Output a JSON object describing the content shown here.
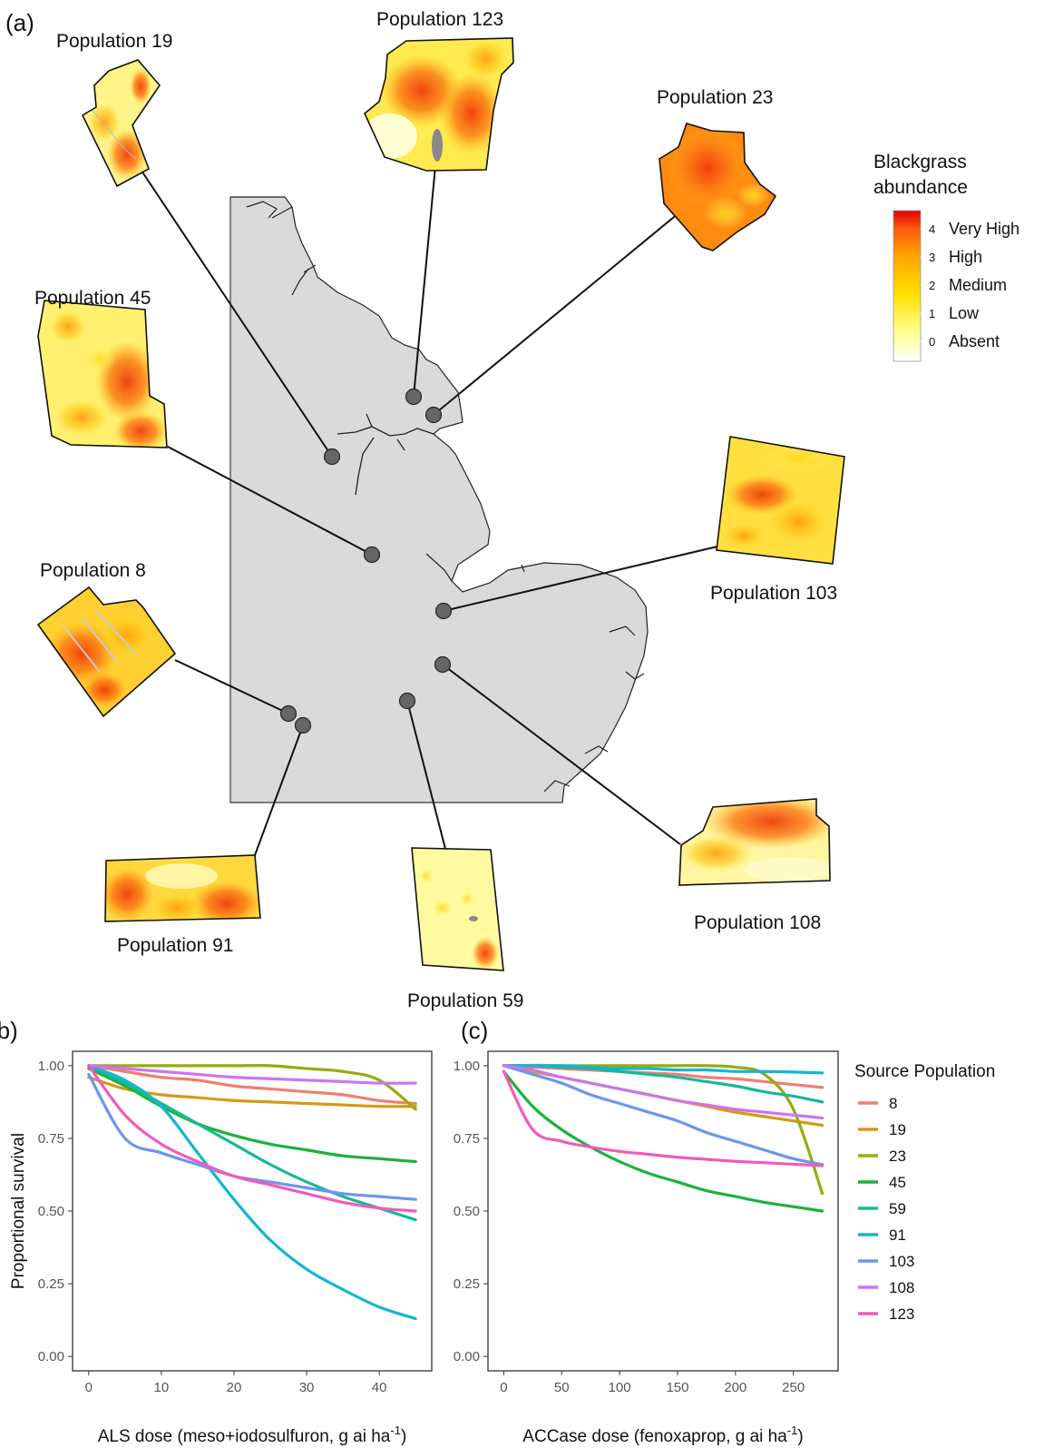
{
  "panel_a": {
    "panel_label": "(a)",
    "legend": {
      "title_line1": "Blackgrass",
      "title_line2": "abundance",
      "levels": [
        {
          "value": "4",
          "label": "Very High"
        },
        {
          "value": "3",
          "label": "High"
        },
        {
          "value": "2",
          "label": "Medium"
        },
        {
          "value": "1",
          "label": "Low"
        },
        {
          "value": "0",
          "label": "Absent"
        }
      ],
      "colors": [
        "#ffffff",
        "#ffff8c",
        "#ffe000",
        "#ffa400",
        "#ff5a10",
        "#e00000"
      ]
    },
    "populations": [
      {
        "label": "Population 19"
      },
      {
        "label": "Population 123"
      },
      {
        "label": "Population 23"
      },
      {
        "label": "Population 45"
      },
      {
        "label": "Population 103"
      },
      {
        "label": "Population 8"
      },
      {
        "label": "Population 91"
      },
      {
        "label": "Population 59"
      },
      {
        "label": "Population 108"
      }
    ]
  },
  "chart_data": [
    {
      "panel_label": "(b)",
      "type": "line",
      "xlabel": "ALS dose (meso+iodosulfuron, g ai ha",
      "xlabel_sup": "-1",
      "xlabel_end": ")",
      "ylabel": "Proportional survival",
      "xlim": [
        0,
        45
      ],
      "ylim": [
        0,
        1
      ],
      "xticks": [
        "0",
        "10",
        "20",
        "30",
        "40"
      ],
      "yticks": [
        "0.00",
        "0.25",
        "0.50",
        "0.75",
        "1.00"
      ],
      "x": [
        0,
        5,
        10,
        15,
        20,
        25,
        30,
        35,
        40,
        45
      ],
      "series": [
        {
          "name": "8",
          "values": [
            1.0,
            0.98,
            0.96,
            0.95,
            0.93,
            0.92,
            0.91,
            0.9,
            0.88,
            0.87
          ]
        },
        {
          "name": "19",
          "values": [
            0.96,
            0.92,
            0.9,
            0.89,
            0.88,
            0.875,
            0.87,
            0.865,
            0.86,
            0.86
          ]
        },
        {
          "name": "23",
          "values": [
            1.0,
            1.0,
            1.0,
            1.0,
            1.0,
            1.0,
            0.99,
            0.98,
            0.95,
            0.85
          ]
        },
        {
          "name": "45",
          "values": [
            0.99,
            0.93,
            0.86,
            0.8,
            0.76,
            0.73,
            0.71,
            0.69,
            0.68,
            0.67
          ]
        },
        {
          "name": "59",
          "values": [
            1.0,
            0.94,
            0.87,
            0.8,
            0.73,
            0.66,
            0.6,
            0.55,
            0.51,
            0.47
          ]
        },
        {
          "name": "91",
          "values": [
            1.0,
            0.95,
            0.86,
            0.7,
            0.54,
            0.4,
            0.3,
            0.23,
            0.17,
            0.13
          ]
        },
        {
          "name": "103",
          "values": [
            0.97,
            0.75,
            0.7,
            0.66,
            0.62,
            0.6,
            0.58,
            0.56,
            0.55,
            0.54
          ]
        },
        {
          "name": "108",
          "values": [
            1.0,
            0.99,
            0.98,
            0.97,
            0.96,
            0.955,
            0.95,
            0.945,
            0.94,
            0.94
          ]
        },
        {
          "name": "123",
          "values": [
            1.0,
            0.83,
            0.73,
            0.67,
            0.62,
            0.59,
            0.56,
            0.53,
            0.51,
            0.5
          ]
        }
      ]
    },
    {
      "panel_label": "(c)",
      "type": "line",
      "xlabel": "ACCase dose (fenoxaprop, g ai ha",
      "xlabel_sup": "-1",
      "xlabel_end": ")",
      "ylabel": "",
      "xlim": [
        0,
        275
      ],
      "ylim": [
        0,
        1
      ],
      "xticks": [
        "0",
        "50",
        "100",
        "150",
        "200",
        "250"
      ],
      "yticks": [
        "0.00",
        "0.25",
        "0.50",
        "0.75",
        "1.00"
      ],
      "x": [
        0,
        25,
        50,
        75,
        100,
        125,
        150,
        175,
        200,
        225,
        250,
        275
      ],
      "series": [
        {
          "name": "8",
          "values": [
            1.0,
            0.995,
            0.99,
            0.985,
            0.98,
            0.975,
            0.97,
            0.96,
            0.955,
            0.945,
            0.935,
            0.925
          ]
        },
        {
          "name": "19",
          "values": [
            1.0,
            0.98,
            0.96,
            0.94,
            0.92,
            0.9,
            0.88,
            0.86,
            0.84,
            0.825,
            0.81,
            0.795
          ]
        },
        {
          "name": "23",
          "values": [
            1.0,
            1.0,
            1.0,
            1.0,
            1.0,
            1.0,
            1.0,
            1.0,
            0.995,
            0.97,
            0.85,
            0.56
          ]
        },
        {
          "name": "45",
          "values": [
            0.98,
            0.86,
            0.78,
            0.72,
            0.67,
            0.63,
            0.6,
            0.57,
            0.55,
            0.53,
            0.515,
            0.5
          ]
        },
        {
          "name": "59",
          "values": [
            1.0,
            1.0,
            0.995,
            0.99,
            0.98,
            0.97,
            0.96,
            0.945,
            0.93,
            0.91,
            0.895,
            0.875
          ]
        },
        {
          "name": "91",
          "values": [
            1.0,
            1.0,
            1.0,
            0.995,
            0.99,
            0.99,
            0.985,
            0.985,
            0.98,
            0.98,
            0.978,
            0.975
          ]
        },
        {
          "name": "103",
          "values": [
            1.0,
            0.97,
            0.94,
            0.9,
            0.87,
            0.84,
            0.81,
            0.77,
            0.74,
            0.71,
            0.68,
            0.66
          ]
        },
        {
          "name": "108",
          "values": [
            1.0,
            0.985,
            0.96,
            0.94,
            0.92,
            0.9,
            0.88,
            0.865,
            0.85,
            0.84,
            0.83,
            0.82
          ]
        },
        {
          "name": "123",
          "values": [
            0.98,
            0.78,
            0.74,
            0.72,
            0.705,
            0.695,
            0.685,
            0.678,
            0.671,
            0.666,
            0.661,
            0.656
          ]
        }
      ]
    }
  ],
  "series_legend": {
    "title": "Source Population",
    "entries": [
      "8",
      "19",
      "23",
      "45",
      "59",
      "91",
      "103",
      "108",
      "123"
    ],
    "colors": [
      "#f07f70",
      "#d59a14",
      "#9aaa10",
      "#1cb23c",
      "#17b897",
      "#12b6d4",
      "#6b97ec",
      "#cc74f0",
      "#f25ab9"
    ]
  }
}
